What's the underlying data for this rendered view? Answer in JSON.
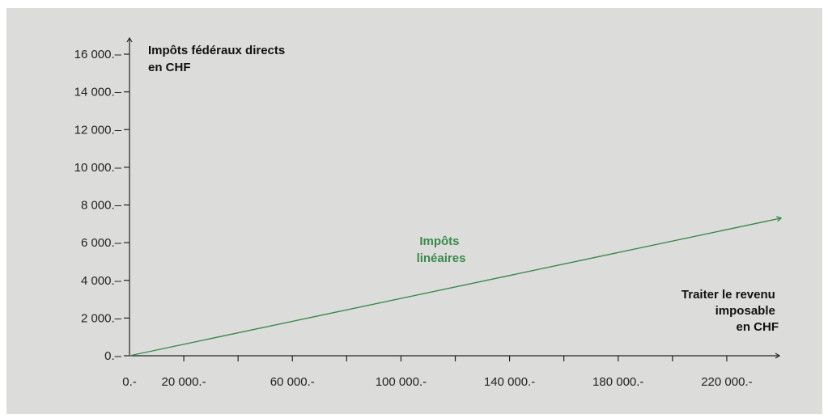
{
  "colors": {
    "panel": "#dcdcda",
    "axis": "#222222",
    "series": "#3a8a4c"
  },
  "chart_data": {
    "type": "line",
    "title": "",
    "ylabel_lines": [
      "Impôts fédéraux directs",
      "en CHF"
    ],
    "xlabel_lines": [
      "Traiter le revenu",
      "imposable",
      "en CHF"
    ],
    "xlim": [
      0,
      240000
    ],
    "ylim": [
      0,
      16000
    ],
    "x_ticks": [
      0,
      20000,
      40000,
      60000,
      80000,
      100000,
      120000,
      140000,
      160000,
      180000,
      200000,
      220000
    ],
    "x_tick_labels": [
      "0.-",
      "20 000.-",
      "",
      "60 000.-",
      "",
      "100 000.-",
      "",
      "140 000.-",
      "",
      "180 000.-",
      "",
      "220 000.-"
    ],
    "y_ticks": [
      0,
      2000,
      4000,
      6000,
      8000,
      10000,
      12000,
      14000,
      16000
    ],
    "y_tick_labels": [
      "0.–",
      "2 000.–",
      "4 000.–",
      "6 000.–",
      "8 000.–",
      "10 000.–",
      "12 000.–",
      "14 000.–",
      "16 000.–"
    ],
    "series": [
      {
        "label_lines": [
          "Impôts",
          "linéaires"
        ],
        "x": [
          0,
          240000
        ],
        "y": [
          0,
          7300
        ]
      }
    ]
  }
}
